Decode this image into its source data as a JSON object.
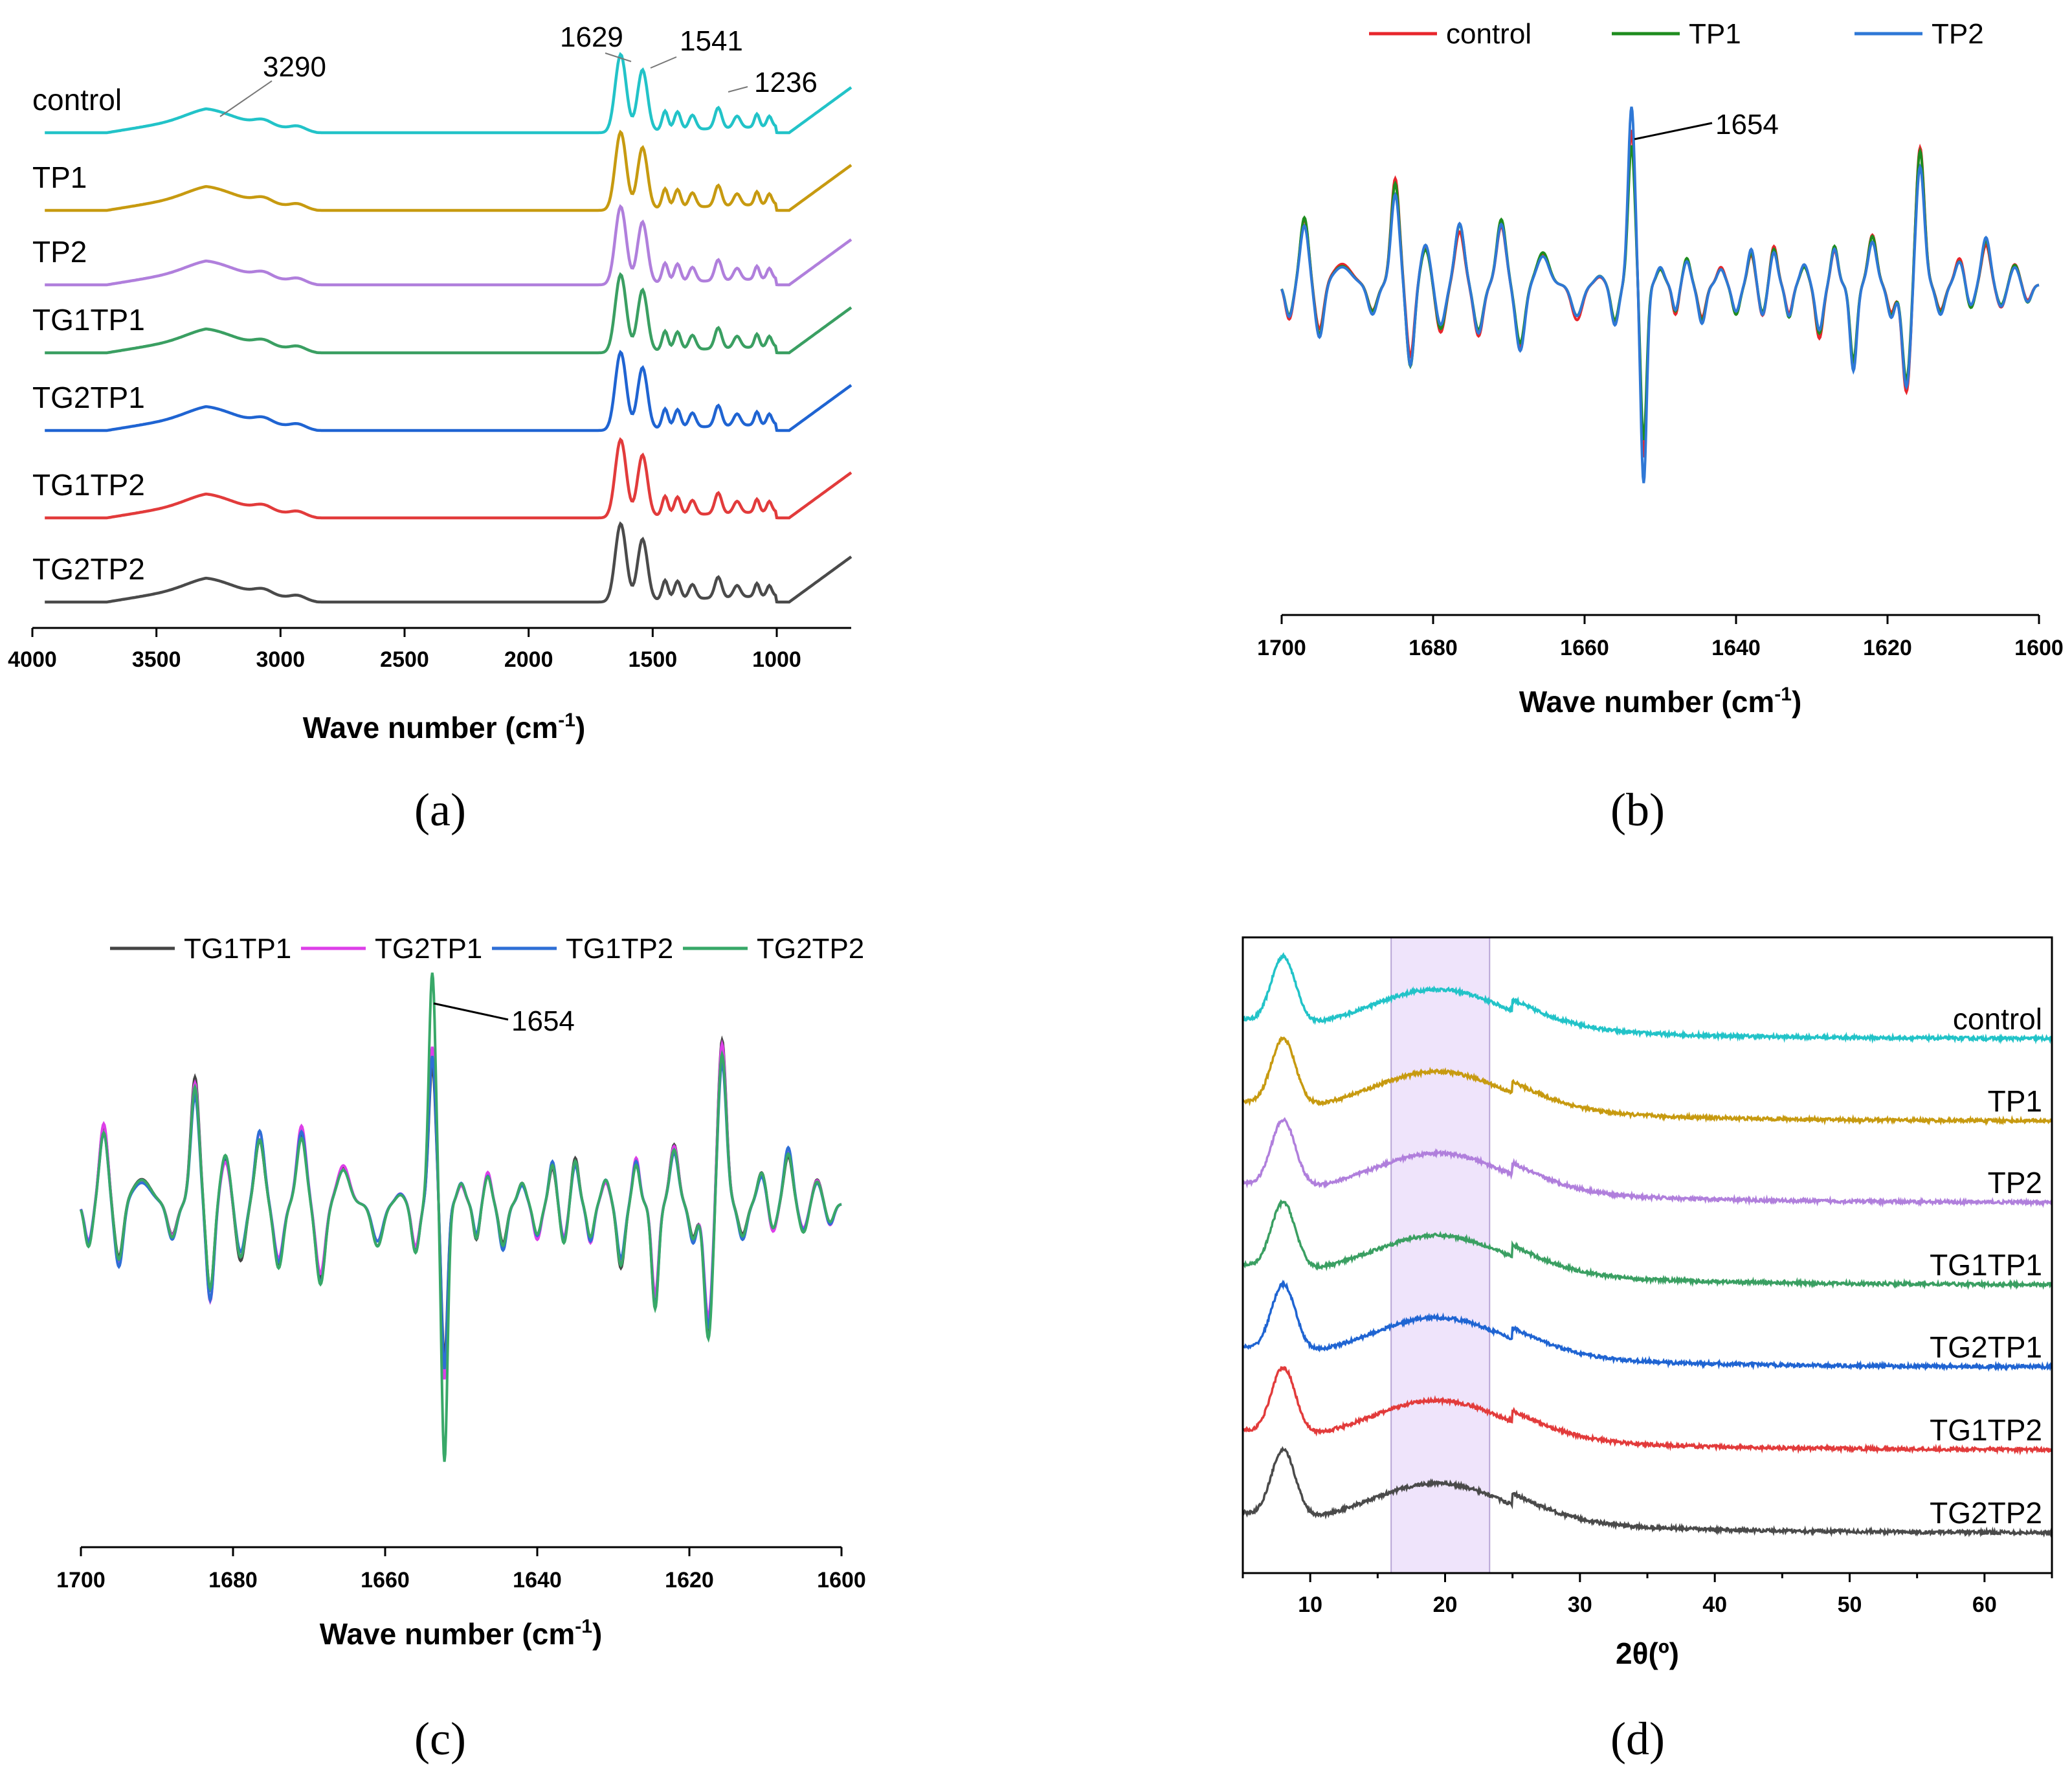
{
  "chart_data": [
    {
      "id": "a",
      "panel_label": "(a)",
      "type": "line",
      "xlabel": "Wave number (cm",
      "xlabel_sup": "-1",
      "xlabel_close": ")",
      "xlim": [
        4000,
        700
      ],
      "xticks": [
        4000,
        3500,
        3000,
        2500,
        2000,
        1500,
        1000
      ],
      "xtick_labels": [
        "4000",
        "3500",
        "3000",
        "2500",
        "2000",
        "1500",
        "1000"
      ],
      "annotations": [
        {
          "text": "3290",
          "x": 3290
        },
        {
          "text": "1629",
          "x": 1629
        },
        {
          "text": "1541",
          "x": 1541
        },
        {
          "text": "1236",
          "x": 1236
        }
      ],
      "series": [
        {
          "name": "control",
          "color": "#22c3c8",
          "offset": 6
        },
        {
          "name": "TP1",
          "color": "#c79a10",
          "offset": 5
        },
        {
          "name": "TP2",
          "color": "#b07fdc",
          "offset": 4
        },
        {
          "name": "TG1TP1",
          "color": "#3a9f62",
          "offset": 3
        },
        {
          "name": "TG2TP1",
          "color": "#1f64d2",
          "offset": 2
        },
        {
          "name": "TG1TP2",
          "color": "#e23b3b",
          "offset": 1
        },
        {
          "name": "TG2TP2",
          "color": "#4a4a4a",
          "offset": 0
        }
      ]
    },
    {
      "id": "b",
      "panel_label": "(b)",
      "type": "line",
      "xlabel": "Wave number (cm",
      "xlabel_sup": "-1",
      "xlabel_close": ")",
      "xlim": [
        1700,
        1600
      ],
      "xticks": [
        1700,
        1680,
        1660,
        1640,
        1620,
        1600
      ],
      "xtick_labels": [
        "1700",
        "1680",
        "1660",
        "1640",
        "1620",
        "1600"
      ],
      "legend_position": "top",
      "annotations": [
        {
          "text": "1654",
          "x": 1654
        }
      ],
      "series": [
        {
          "name": "control",
          "color": "#e8262c",
          "amp": 1.0
        },
        {
          "name": "TP1",
          "color": "#1e8c1e",
          "amp": 0.9
        },
        {
          "name": "TP2",
          "color": "#2f78d6",
          "amp": 1.15
        }
      ]
    },
    {
      "id": "c",
      "panel_label": "(c)",
      "type": "line",
      "xlabel": "Wave number (cm",
      "xlabel_sup": "-1",
      "xlabel_close": ")",
      "xlim": [
        1700,
        1600
      ],
      "xticks": [
        1700,
        1680,
        1660,
        1640,
        1620,
        1600
      ],
      "xtick_labels": [
        "1700",
        "1680",
        "1660",
        "1640",
        "1620",
        "1600"
      ],
      "legend_position": "top",
      "annotations": [
        {
          "text": "1654",
          "x": 1654
        }
      ],
      "series": [
        {
          "name": "TG1TP1",
          "color": "#444444",
          "amp": 0.75
        },
        {
          "name": "TG2TP1",
          "color": "#dd3fe8",
          "amp": 0.85
        },
        {
          "name": "TG1TP2",
          "color": "#2f6fd6",
          "amp": 0.8
        },
        {
          "name": "TG2TP2",
          "color": "#38a868",
          "amp": 1.25
        }
      ]
    },
    {
      "id": "d",
      "panel_label": "(d)",
      "type": "line",
      "xlabel": "2θ(º)",
      "xlim": [
        5,
        65
      ],
      "xticks": [
        10,
        20,
        30,
        40,
        50,
        60
      ],
      "xtick_labels": [
        "10",
        "20",
        "30",
        "40",
        "50",
        "60"
      ],
      "shaded_region": [
        16,
        23.3
      ],
      "series": [
        {
          "name": "control",
          "color": "#22c3c8",
          "offset": 6
        },
        {
          "name": "TP1",
          "color": "#c79a10",
          "offset": 5
        },
        {
          "name": "TP2",
          "color": "#b07fdc",
          "offset": 4
        },
        {
          "name": "TG1TP1",
          "color": "#3a9f62",
          "offset": 3
        },
        {
          "name": "TG2TP1",
          "color": "#1f64d2",
          "offset": 2
        },
        {
          "name": "TG1TP2",
          "color": "#e23b3b",
          "offset": 1
        },
        {
          "name": "TG2TP2",
          "color": "#4a4a4a",
          "offset": 0
        }
      ]
    }
  ]
}
